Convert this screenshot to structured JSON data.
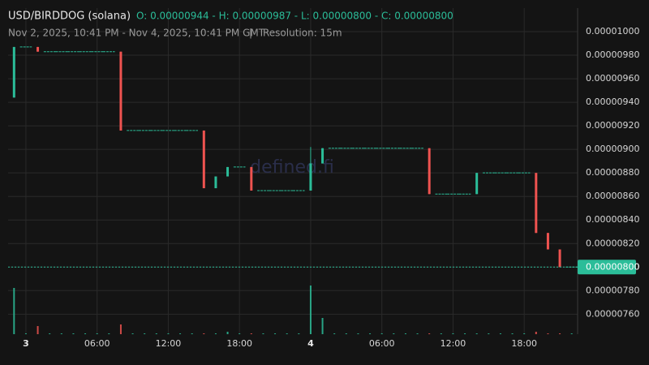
{
  "header": {
    "title": "USD/BIRDDOG (solana)",
    "ohlc": "O: 0.00000944 - H: 0.00000987 - L: 0.00000800 - C: 0.00000800",
    "range": "Nov 2, 2025, 10:41 PM - Nov 4, 2025, 10:41 PM GMT",
    "separator": "|",
    "resolution": "Resolution: 15m",
    "watermark": "defined.fi"
  },
  "chart_data": {
    "type": "candlestick",
    "categories": [
      null,
      "3",
      null,
      null,
      null,
      null,
      null,
      "06:00",
      null,
      null,
      null,
      null,
      null,
      "12:00",
      null,
      null,
      null,
      null,
      null,
      "18:00",
      null,
      null,
      null,
      null,
      null,
      "4",
      null,
      null,
      null,
      null,
      null,
      "06:00",
      null,
      null,
      null,
      null,
      null,
      "12:00",
      null,
      null,
      null,
      null,
      null,
      "18:00",
      null,
      null,
      null,
      null
    ],
    "open": [
      9.44e-06,
      9.87e-06,
      9.87e-06,
      9.83e-06,
      9.83e-06,
      9.83e-06,
      9.83e-06,
      9.83e-06,
      9.83e-06,
      9.83e-06,
      9.16e-06,
      9.16e-06,
      9.16e-06,
      9.16e-06,
      9.16e-06,
      9.16e-06,
      9.16e-06,
      8.67e-06,
      8.77e-06,
      8.85e-06,
      8.85e-06,
      8.65e-06,
      8.65e-06,
      8.65e-06,
      8.65e-06,
      8.65e-06,
      8.88e-06,
      9.01e-06,
      9.01e-06,
      9.01e-06,
      9.01e-06,
      9.01e-06,
      9.01e-06,
      9.01e-06,
      9.01e-06,
      9.01e-06,
      8.62e-06,
      8.62e-06,
      8.62e-06,
      8.62e-06,
      8.8e-06,
      8.8e-06,
      8.8e-06,
      8.8e-06,
      8.8e-06,
      8.29e-06,
      8.15e-06,
      8e-06
    ],
    "high": [
      9.87e-06,
      9.87e-06,
      9.87e-06,
      9.83e-06,
      9.83e-06,
      9.83e-06,
      9.83e-06,
      9.83e-06,
      9.83e-06,
      9.83e-06,
      9.16e-06,
      9.16e-06,
      9.16e-06,
      9.16e-06,
      9.16e-06,
      9.16e-06,
      9.16e-06,
      8.77e-06,
      8.85e-06,
      8.85e-06,
      8.85e-06,
      8.65e-06,
      8.65e-06,
      8.65e-06,
      8.65e-06,
      9.02e-06,
      9.01e-06,
      9.01e-06,
      9.01e-06,
      9.01e-06,
      9.01e-06,
      9.01e-06,
      9.01e-06,
      9.01e-06,
      9.01e-06,
      9.01e-06,
      8.62e-06,
      8.62e-06,
      8.62e-06,
      8.8e-06,
      8.8e-06,
      8.8e-06,
      8.8e-06,
      8.8e-06,
      8.8e-06,
      8.29e-06,
      8.15e-06,
      8e-06
    ],
    "low": [
      9.44e-06,
      9.87e-06,
      9.83e-06,
      9.83e-06,
      9.83e-06,
      9.83e-06,
      9.83e-06,
      9.83e-06,
      9.83e-06,
      9.16e-06,
      9.16e-06,
      9.16e-06,
      9.16e-06,
      9.16e-06,
      9.16e-06,
      9.16e-06,
      8.67e-06,
      8.67e-06,
      8.77e-06,
      8.85e-06,
      8.65e-06,
      8.65e-06,
      8.65e-06,
      8.65e-06,
      8.65e-06,
      8.65e-06,
      8.88e-06,
      9.01e-06,
      9.01e-06,
      9.01e-06,
      9.01e-06,
      9.01e-06,
      9.01e-06,
      9.01e-06,
      9.01e-06,
      8.62e-06,
      8.62e-06,
      8.62e-06,
      8.62e-06,
      8.62e-06,
      8.8e-06,
      8.8e-06,
      8.8e-06,
      8.8e-06,
      8.29e-06,
      8.15e-06,
      8e-06,
      8e-06
    ],
    "close": [
      9.87e-06,
      9.87e-06,
      9.83e-06,
      9.83e-06,
      9.83e-06,
      9.83e-06,
      9.83e-06,
      9.83e-06,
      9.83e-06,
      9.16e-06,
      9.16e-06,
      9.16e-06,
      9.16e-06,
      9.16e-06,
      9.16e-06,
      9.16e-06,
      8.67e-06,
      8.77e-06,
      8.85e-06,
      8.85e-06,
      8.65e-06,
      8.65e-06,
      8.65e-06,
      8.65e-06,
      8.65e-06,
      8.88e-06,
      9.01e-06,
      9.01e-06,
      9.01e-06,
      9.01e-06,
      9.01e-06,
      9.01e-06,
      9.01e-06,
      9.01e-06,
      9.01e-06,
      8.62e-06,
      8.62e-06,
      8.62e-06,
      8.62e-06,
      8.8e-06,
      8.8e-06,
      8.8e-06,
      8.8e-06,
      8.8e-06,
      8.29e-06,
      8.15e-06,
      8e-06,
      8e-06
    ],
    "volume": [
      57,
      1,
      10,
      1,
      1,
      1,
      1,
      1,
      1,
      12,
      1,
      1,
      1,
      1,
      1,
      1,
      1,
      1,
      3,
      1,
      1,
      1,
      1,
      1,
      1,
      60,
      20,
      1,
      1,
      1,
      1,
      1,
      1,
      1,
      1,
      1,
      1,
      1,
      1,
      1,
      1,
      1,
      1,
      1,
      3,
      1,
      1,
      1
    ],
    "up_color": "#2bbd99",
    "down_color": "#ef5350",
    "ylim": [
      7.43e-06,
      1.02e-05
    ],
    "yticks": [
      {
        "value": 7.6e-06,
        "label": "0.00000760"
      },
      {
        "value": 7.8e-06,
        "label": "0.00000780"
      },
      {
        "value": 8e-06,
        "label": "0.00000800"
      },
      {
        "value": 8.2e-06,
        "label": "0.00000820"
      },
      {
        "value": 8.4e-06,
        "label": "0.00000840"
      },
      {
        "value": 8.6e-06,
        "label": "0.00000860"
      },
      {
        "value": 8.8e-06,
        "label": "0.00000880"
      },
      {
        "value": 9e-06,
        "label": "0.00000900"
      },
      {
        "value": 9.2e-06,
        "label": "0.00000920"
      },
      {
        "value": 9.4e-06,
        "label": "0.00000940"
      },
      {
        "value": 9.6e-06,
        "label": "0.00000960"
      },
      {
        "value": 9.8e-06,
        "label": "0.00000980"
      },
      {
        "value": 1e-05,
        "label": "0.00001000"
      }
    ],
    "last_price": {
      "value": 8e-06,
      "label": "0.00000800"
    },
    "grid": true
  }
}
